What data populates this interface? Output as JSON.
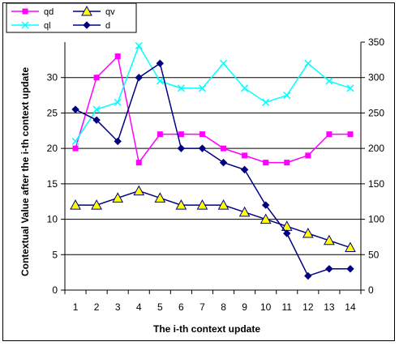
{
  "chart_data": {
    "type": "line",
    "xlabel": "The i-th context update",
    "ylabel": "Contextual Value after the i-th context update",
    "x": [
      1,
      2,
      3,
      4,
      5,
      6,
      7,
      8,
      9,
      10,
      11,
      12,
      13,
      14
    ],
    "left_axis": {
      "ylim": [
        0,
        35
      ],
      "ticks": [
        0,
        5,
        10,
        15,
        20,
        25,
        30
      ]
    },
    "right_axis": {
      "ylim": [
        0,
        350
      ],
      "ticks": [
        0,
        50,
        100,
        150,
        200,
        250,
        300,
        350
      ]
    },
    "grid": true,
    "legend_position": "top-left",
    "series": [
      {
        "name": "qd",
        "axis": "left",
        "color": "#ff00ff",
        "marker": "square",
        "values": [
          20,
          30,
          33,
          18,
          22,
          22,
          22,
          20,
          19,
          18,
          18,
          19,
          22,
          22
        ]
      },
      {
        "name": "qv",
        "axis": "left",
        "color": "#000080",
        "marker": "triangle",
        "marker_fill": "#ffff00",
        "values": [
          12,
          12,
          13,
          14,
          13,
          12,
          12,
          12,
          11,
          10,
          9,
          8,
          7,
          6
        ]
      },
      {
        "name": "ql",
        "axis": "right",
        "color": "#00ffff",
        "marker": "x",
        "values": [
          210,
          255,
          265,
          345,
          295,
          285,
          285,
          320,
          285,
          265,
          275,
          320,
          295,
          285
        ]
      },
      {
        "name": "d",
        "axis": "right",
        "color": "#000080",
        "marker": "diamond",
        "values": [
          255,
          240,
          210,
          300,
          320,
          200,
          200,
          180,
          170,
          120,
          80,
          20,
          30,
          30
        ]
      }
    ]
  }
}
